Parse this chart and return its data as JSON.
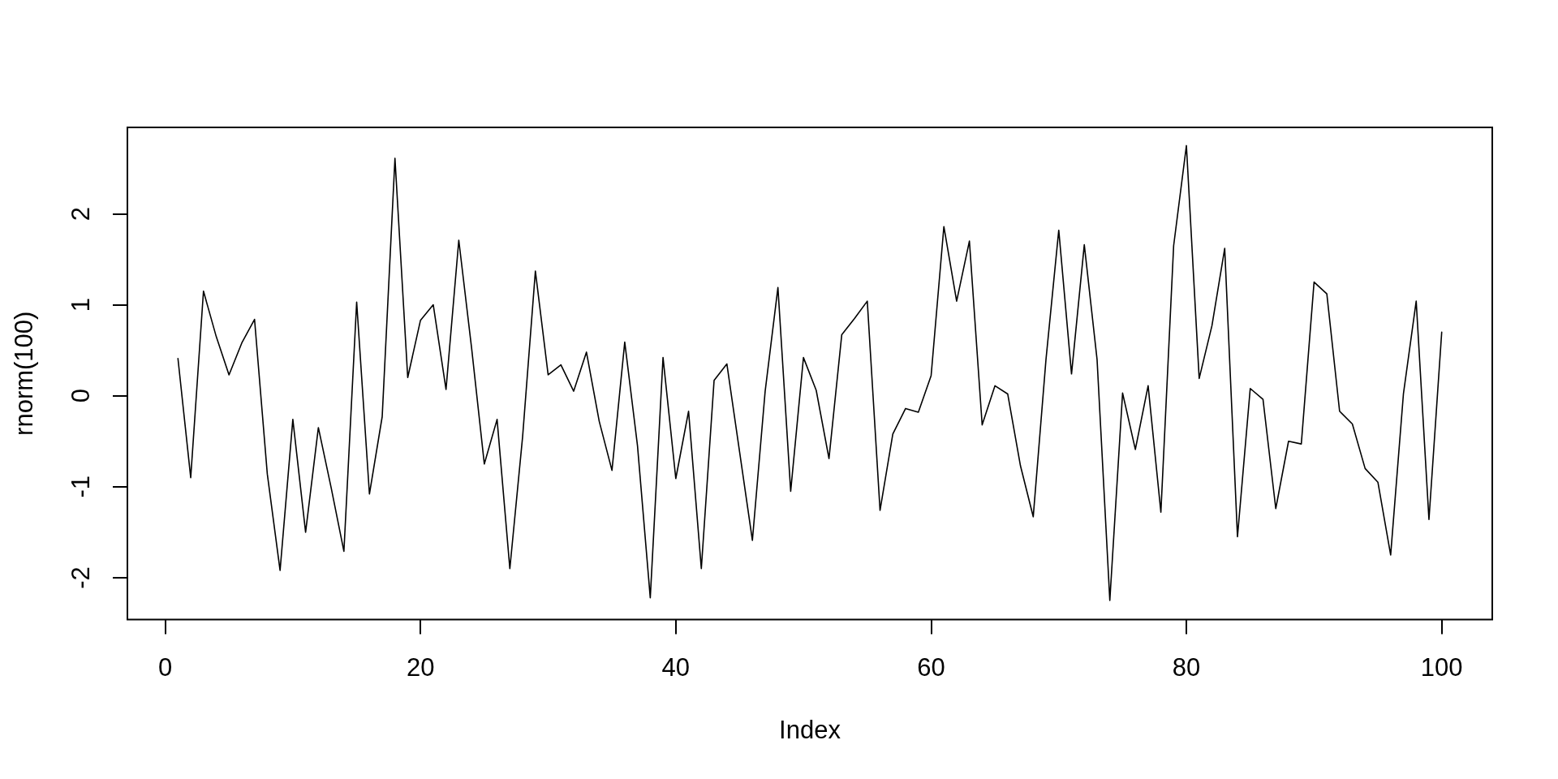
{
  "chart_data": {
    "type": "line",
    "xlabel": "Index",
    "ylabel": "rnorm(100)",
    "color": "#000000",
    "marker": "none",
    "line_style": "solid",
    "x": [
      1,
      2,
      3,
      4,
      5,
      6,
      7,
      8,
      9,
      10,
      11,
      12,
      13,
      14,
      15,
      16,
      17,
      18,
      19,
      20,
      21,
      22,
      23,
      24,
      25,
      26,
      27,
      28,
      29,
      30,
      31,
      32,
      33,
      34,
      35,
      36,
      37,
      38,
      39,
      40,
      41,
      42,
      43,
      44,
      45,
      46,
      47,
      48,
      49,
      50,
      51,
      52,
      53,
      54,
      55,
      56,
      57,
      58,
      59,
      60,
      61,
      62,
      63,
      64,
      65,
      66,
      67,
      68,
      69,
      70,
      71,
      72,
      73,
      74,
      75,
      76,
      77,
      78,
      79,
      80,
      81,
      82,
      83,
      84,
      85,
      86,
      87,
      88,
      89,
      90,
      91,
      92,
      93,
      94,
      95,
      96,
      97,
      98,
      99,
      100
    ],
    "values": [
      0.41,
      -0.9,
      1.15,
      0.65,
      0.23,
      0.58,
      0.84,
      -0.86,
      -1.92,
      -0.26,
      -1.5,
      -0.35,
      -1.01,
      -1.71,
      1.03,
      -1.08,
      -0.23,
      2.61,
      0.2,
      0.83,
      1.0,
      0.07,
      1.71,
      0.53,
      -0.75,
      -0.26,
      -1.9,
      -0.45,
      1.37,
      0.23,
      0.34,
      0.05,
      0.48,
      -0.28,
      -0.82,
      0.59,
      -0.55,
      -2.22,
      0.42,
      -0.91,
      -0.17,
      -1.9,
      0.17,
      0.35,
      -0.62,
      -1.59,
      0.05,
      1.19,
      -1.05,
      0.42,
      0.06,
      -0.69,
      0.67,
      0.85,
      1.04,
      -1.26,
      -0.42,
      -0.14,
      -0.18,
      0.22,
      1.86,
      1.04,
      1.7,
      -0.32,
      0.11,
      0.02,
      -0.77,
      -1.33,
      0.4,
      1.82,
      0.24,
      1.66,
      0.4,
      -2.25,
      0.03,
      -0.59,
      0.11,
      -1.28,
      1.65,
      2.75,
      0.19,
      0.77,
      1.62,
      -1.55,
      0.08,
      -0.04,
      -1.24,
      -0.5,
      -0.53,
      1.25,
      1.12,
      -0.17,
      -0.31,
      -0.8,
      -0.95,
      -1.75,
      0.02,
      1.04,
      -1.36,
      0.7
    ],
    "xlim": [
      -2.96,
      103.96
    ],
    "ylim": [
      -2.46,
      2.95
    ],
    "xticks": [
      0,
      20,
      40,
      60,
      80,
      100
    ],
    "yticks": [
      -2,
      -1,
      0,
      1,
      2
    ]
  }
}
